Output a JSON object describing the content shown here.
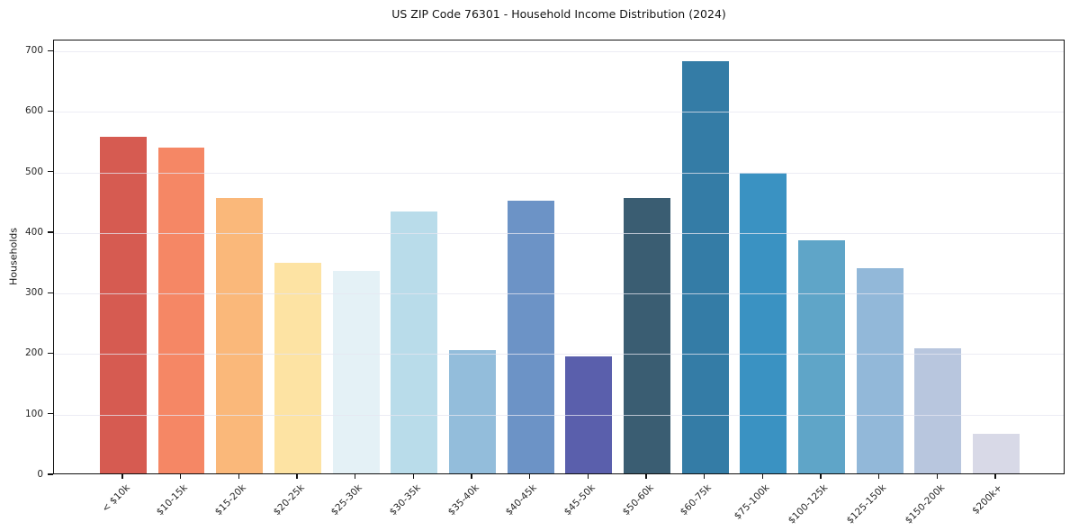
{
  "chart_data": {
    "type": "bar",
    "title": "US ZIP Code 76301 - Household Income Distribution (2024)",
    "xlabel": "",
    "ylabel": "Households",
    "categories": [
      "< $10k",
      "$10-15k",
      "$15-20k",
      "$20-25k",
      "$25-30k",
      "$30-35k",
      "$35-40k",
      "$40-45k",
      "$45-50k",
      "$50-60k",
      "$60-75k",
      "$75-100k",
      "$100-125k",
      "$125-150k",
      "$150-200k",
      "$200k+"
    ],
    "values": [
      556,
      538,
      455,
      348,
      334,
      432,
      204,
      450,
      193,
      455,
      681,
      496,
      385,
      339,
      206,
      65
    ],
    "bar_colors": [
      "#d65b51",
      "#f58765",
      "#fab87a",
      "#fde3a3",
      "#e4f1f6",
      "#b9dcea",
      "#93bddb",
      "#6c93c6",
      "#5a5fac",
      "#3a5d72",
      "#347ca6",
      "#3a92c2",
      "#5fa5c8",
      "#92b8d9",
      "#b8c6de",
      "#d8d9e7"
    ],
    "ylim": [
      0,
      718
    ],
    "yticks": [
      0,
      100,
      200,
      300,
      400,
      500,
      600,
      700
    ],
    "grid": "horizontal",
    "gridline_color": "#e6e6f0",
    "frame_color": "#111111",
    "background_color": "#ffffff",
    "xtick_rotation": 45,
    "legend": "none"
  }
}
